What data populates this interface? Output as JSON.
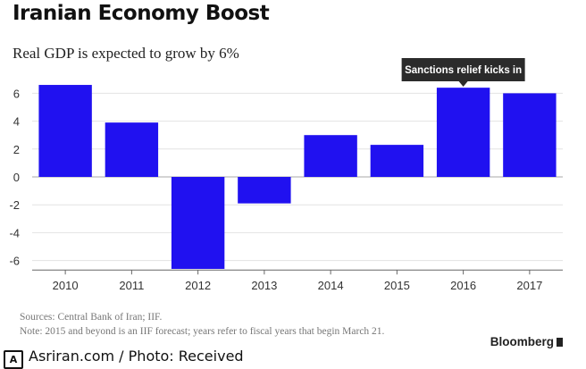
{
  "chart_data": {
    "type": "bar",
    "title": "Iranian Economy Boost",
    "subtitle": "Real GDP is expected to grow by 6%",
    "categories": [
      "2010",
      "2011",
      "2012",
      "2013",
      "2014",
      "2015",
      "2016",
      "2017"
    ],
    "values": [
      6.6,
      3.9,
      -6.6,
      -1.9,
      3.0,
      2.3,
      6.4,
      6.0
    ],
    "ylim": [
      -7,
      7.5
    ],
    "yticks": [
      6,
      4,
      2,
      0,
      -2,
      -4,
      -6
    ],
    "ytick_labels": [
      "6",
      "4",
      "2",
      "0",
      "-2",
      "-4",
      "-6"
    ],
    "grid": true,
    "bar_color": "#2011f0",
    "annotation": {
      "text": "Sanctions relief kicks in",
      "category": "2016"
    }
  },
  "footer": {
    "sources": "Sources: Central Bank of Iran; IIF.",
    "note": "Note: 2015 and beyond is an IIF forecast; years refer to fiscal years that begin March 21.",
    "brand": "Bloomberg"
  },
  "credit": {
    "logo_text": "A",
    "text": "Asriran.com / Photo: Received"
  }
}
